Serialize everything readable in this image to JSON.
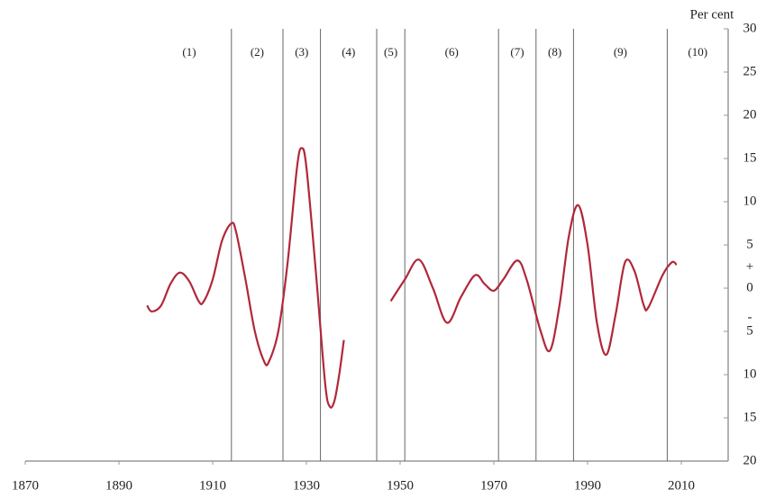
{
  "chart_data": {
    "type": "line",
    "y_axis_label": "Per cent",
    "x": [
      1896,
      1897,
      1899,
      1901,
      1903,
      1905,
      1907,
      1908,
      1910,
      1912,
      1914,
      1915,
      1917,
      1919,
      1921,
      1922,
      1924,
      1926,
      1928,
      1929,
      1930,
      1932,
      1934,
      1935,
      1936,
      1937,
      1938,
      1943,
      1948,
      1951,
      1954,
      1957,
      1960,
      1963,
      1966,
      1968,
      1970,
      1972,
      1975,
      1977,
      1980,
      1982,
      1984,
      1986,
      1988,
      1990,
      1992,
      1994,
      1996,
      1998,
      2000,
      2002,
      2003,
      2006,
      2008,
      2009
    ],
    "series": [
      {
        "color": "#b0283a",
        "values": [
          -2,
          -2.7,
          -2,
          0.5,
          1.8,
          0.8,
          -1.5,
          -1.6,
          1,
          5.5,
          7.5,
          6.5,
          1,
          -5,
          -8.5,
          -8.5,
          -5,
          3,
          14,
          16.2,
          14,
          2,
          -11,
          -13.7,
          -13,
          -10,
          -6,
          null,
          -1.5,
          1,
          3.3,
          0,
          -4,
          -1,
          1.5,
          0.5,
          -0.3,
          1,
          3.2,
          1,
          -5,
          -7.2,
          -2,
          6,
          9.6,
          5,
          -4,
          -7.7,
          -3,
          3,
          2,
          -2,
          -2.2,
          1.5,
          3,
          2.7
        ]
      }
    ],
    "xlim": [
      1870,
      2020
    ],
    "xticks": [
      1870,
      1890,
      1910,
      1930,
      1950,
      1970,
      1990,
      2010
    ],
    "ylim": [
      -20,
      30
    ],
    "yticks": [
      30,
      25,
      20,
      15,
      10,
      5,
      0,
      {
        "value": -5,
        "label": "5"
      },
      {
        "value": -10,
        "label": "10"
      },
      {
        "value": -15,
        "label": "15"
      },
      {
        "value": -20,
        "label": "20"
      }
    ],
    "sign_labels": [
      "+",
      "-"
    ],
    "dividers": [
      1914,
      1925,
      1933,
      1945,
      1951,
      1971,
      1979,
      1987,
      2007
    ],
    "periods": [
      "(1)",
      "(2)",
      "(3)",
      "(4)",
      "(5)",
      "(6)",
      "(7)",
      "(8)",
      "(9)",
      "(10)"
    ]
  }
}
